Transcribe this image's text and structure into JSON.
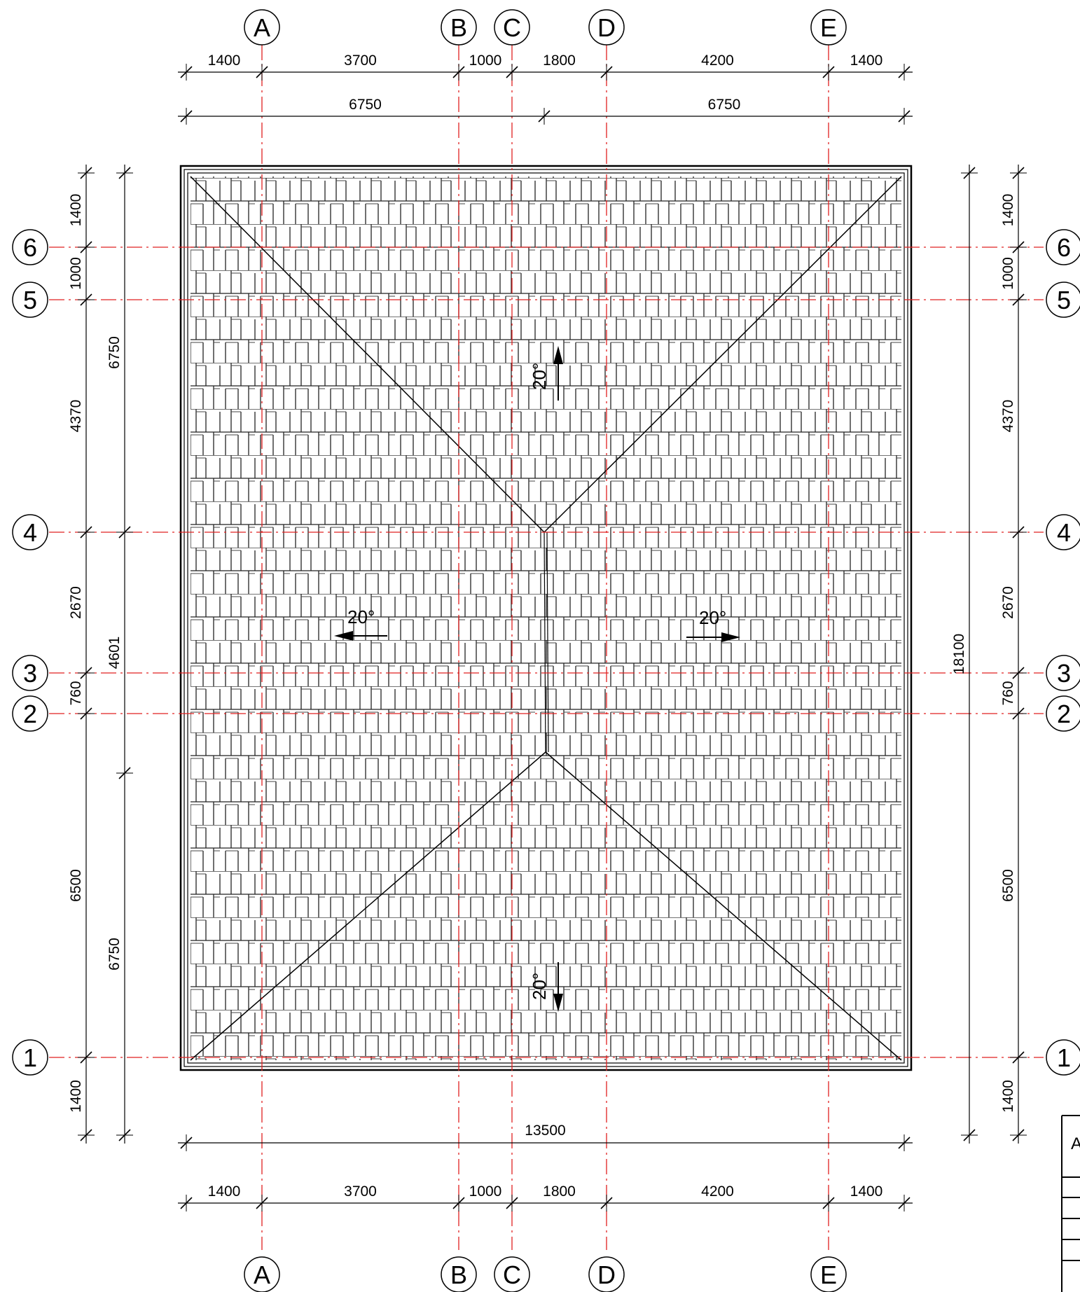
{
  "axes_vertical": [
    {
      "label": "A"
    },
    {
      "label": "B"
    },
    {
      "label": "C"
    },
    {
      "label": "D"
    },
    {
      "label": "E"
    }
  ],
  "axes_horizontal": [
    {
      "label": "6"
    },
    {
      "label": "5"
    },
    {
      "label": "4"
    },
    {
      "label": "3"
    },
    {
      "label": "2"
    },
    {
      "label": "1"
    }
  ],
  "dims_top_chain": [
    "1400",
    "3700",
    "1000",
    "1800",
    "4200",
    "1400"
  ],
  "dims_top_half": [
    "6750",
    "6750"
  ],
  "dims_bottom_total": "13500",
  "dims_bottom_chain": [
    "1400",
    "3700",
    "1000",
    "1800",
    "4200",
    "1400"
  ],
  "dims_left_chain": [
    "1400",
    "1000",
    "4370",
    "2670",
    "760",
    "6500",
    "1400"
  ],
  "dims_left_outer": [
    "6750",
    "4601",
    "6750"
  ],
  "dims_right_chain": [
    "1400",
    "1000",
    "4370",
    "2670",
    "760",
    "6500",
    "1400"
  ],
  "dims_right_total": "18100",
  "slopes": {
    "top": "20°",
    "left": "20°",
    "right": "20°",
    "bottom": "20°"
  },
  "title_block_letter": "A",
  "colors": {
    "axis_line": "#e02020",
    "drawing_line": "#000000"
  }
}
